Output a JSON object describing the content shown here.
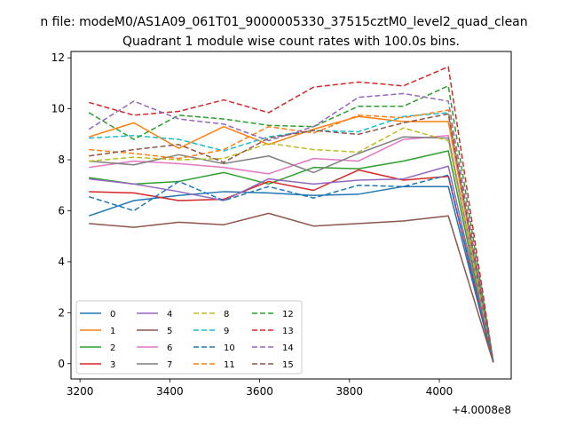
{
  "suptitle": "n file: modeM0/AS1A09_061T01_9000005330_37515cztM0_level2_quad_clean",
  "chart_data": {
    "type": "line",
    "title": "Quadrant 1 module wise count rates with 100.0s bins.",
    "xlabel": "",
    "ylabel": "",
    "x_offset_label": "+4.0008e8",
    "x": [
      3220,
      3320,
      3420,
      3520,
      3620,
      3720,
      3820,
      3920,
      4020,
      4120
    ],
    "xlim": [
      3180,
      4160
    ],
    "ylim": [
      -0.6,
      12.25
    ],
    "xticks": [
      3200,
      3400,
      3600,
      3800,
      4000
    ],
    "yticks": [
      0,
      2,
      4,
      6,
      8,
      10,
      12
    ],
    "grid": false,
    "legend": {
      "location": "lower-left",
      "columns": 4
    },
    "series": [
      {
        "name": "0",
        "color": "#1f77b4",
        "dash": "solid",
        "values": [
          5.8,
          6.4,
          6.6,
          6.75,
          6.7,
          6.6,
          6.65,
          6.95,
          6.95,
          0.05
        ]
      },
      {
        "name": "1",
        "color": "#ff7f0e",
        "dash": "solid",
        "values": [
          8.9,
          9.45,
          8.45,
          9.3,
          8.6,
          9.2,
          9.7,
          9.5,
          9.5,
          0.1
        ]
      },
      {
        "name": "2",
        "color": "#2ca02c",
        "dash": "solid",
        "values": [
          7.3,
          7.05,
          7.15,
          7.5,
          7.05,
          7.7,
          7.65,
          7.95,
          8.35,
          0.05
        ]
      },
      {
        "name": "3",
        "color": "#d62728",
        "dash": "solid",
        "values": [
          6.75,
          6.7,
          6.4,
          6.45,
          7.15,
          6.8,
          7.6,
          7.2,
          7.35,
          0.05
        ]
      },
      {
        "name": "4",
        "color": "#9467bd",
        "dash": "solid",
        "values": [
          7.25,
          7.05,
          6.75,
          6.4,
          7.25,
          7.05,
          7.2,
          7.25,
          7.75,
          0.1
        ]
      },
      {
        "name": "5",
        "color": "#8c564b",
        "dash": "solid",
        "values": [
          5.5,
          5.35,
          5.55,
          5.45,
          5.9,
          5.4,
          5.5,
          5.6,
          5.8,
          0.05
        ]
      },
      {
        "name": "6",
        "color": "#e377c2",
        "dash": "solid",
        "values": [
          7.7,
          7.95,
          7.85,
          7.7,
          7.45,
          8.05,
          7.95,
          8.8,
          8.95,
          0.1
        ]
      },
      {
        "name": "7",
        "color": "#7f7f7f",
        "dash": "solid",
        "values": [
          7.95,
          7.8,
          8.2,
          7.85,
          8.15,
          7.5,
          8.25,
          8.9,
          8.85,
          0.05
        ]
      },
      {
        "name": "8",
        "color": "#bcbd22",
        "dash": "dashed",
        "values": [
          7.95,
          8.1,
          8.0,
          8.05,
          8.65,
          8.4,
          8.3,
          9.25,
          8.75,
          0.1
        ]
      },
      {
        "name": "9",
        "color": "#17becf",
        "dash": "dashed",
        "values": [
          8.85,
          8.95,
          8.8,
          8.35,
          8.9,
          9.15,
          9.1,
          9.7,
          9.85,
          0.1
        ]
      },
      {
        "name": "10",
        "color": "#1f77b4",
        "dash": "dashed",
        "values": [
          6.55,
          6.0,
          7.15,
          6.4,
          6.95,
          6.5,
          7.0,
          6.95,
          7.4,
          0.05
        ]
      },
      {
        "name": "11",
        "color": "#ff7f0e",
        "dash": "dashed",
        "values": [
          8.4,
          8.25,
          8.05,
          8.4,
          9.3,
          9.05,
          9.75,
          9.65,
          9.95,
          0.1
        ]
      },
      {
        "name": "12",
        "color": "#2ca02c",
        "dash": "dashed",
        "values": [
          9.85,
          8.8,
          9.75,
          9.6,
          9.35,
          9.3,
          10.1,
          10.1,
          10.9,
          0.1
        ]
      },
      {
        "name": "13",
        "color": "#d62728",
        "dash": "dashed",
        "values": [
          10.25,
          9.75,
          9.9,
          10.35,
          9.85,
          10.85,
          11.05,
          10.9,
          11.65,
          0.1
        ]
      },
      {
        "name": "14",
        "color": "#9467bd",
        "dash": "dashed",
        "values": [
          9.2,
          10.3,
          9.6,
          9.4,
          8.75,
          9.3,
          10.45,
          10.6,
          10.3,
          0.1
        ]
      },
      {
        "name": "15",
        "color": "#8c564b",
        "dash": "dashed",
        "values": [
          8.15,
          8.4,
          8.6,
          7.9,
          8.85,
          9.15,
          9.0,
          9.45,
          9.8,
          0.05
        ]
      }
    ]
  }
}
